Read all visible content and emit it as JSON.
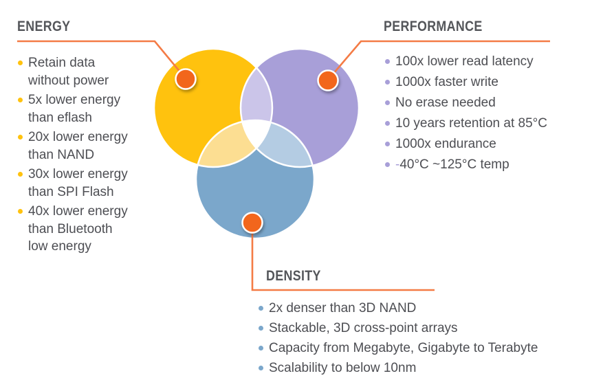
{
  "sections": {
    "energy": {
      "title": "ENERGY",
      "bullet_color": "#FFC20E",
      "circle_color": "#FFC20E",
      "items": [
        [
          "Retain data",
          "without power"
        ],
        [
          "5x lower energy",
          "than eflash"
        ],
        [
          "20x lower energy",
          "than NAND"
        ],
        [
          "30x lower energy",
          "than SPI Flash"
        ],
        [
          "40x lower energy",
          "than Bluetooth",
          "low energy"
        ]
      ]
    },
    "performance": {
      "title": "PERFORMANCE",
      "bullet_color": "#A89FD8",
      "circle_color": "#A89FD8",
      "items": [
        [
          "100x lower read latency"
        ],
        [
          "1000x faster write"
        ],
        [
          "No erase needed"
        ],
        [
          "10 years retention at 85°C"
        ],
        [
          "1000x endurance"
        ],
        {
          "accent_prefix": "-",
          "lines": [
            "40°C ~125°C temp"
          ]
        }
      ]
    },
    "density": {
      "title": "DENSITY",
      "bullet_color": "#7BA7CB",
      "circle_color": "#7BA7CB",
      "items": [
        [
          "2x denser than 3D NAND"
        ],
        [
          "Stackable, 3D cross-point arrays"
        ],
        [
          "Capacity from Megabyte, Gigabyte to Terabyte"
        ],
        [
          "Scalability to below 10nm"
        ]
      ]
    }
  },
  "colors": {
    "background": "#FFFFFF",
    "gold": "#FFC20E",
    "purple": "#A89FD8",
    "blue": "#7BA7CB",
    "overlap_gold_purple": "#CBC5E9",
    "overlap_gold_blue": "#FCDE92",
    "overlap_purple_blue": "#B4CCE3",
    "overlap_center": "#FFFFFF",
    "circle_edge_white": "#FFFFFF",
    "connector_orange": "#F47B45",
    "marker_orange": "#F2661F",
    "heading_text": "#54565A",
    "body_text": "#4D4E53"
  }
}
